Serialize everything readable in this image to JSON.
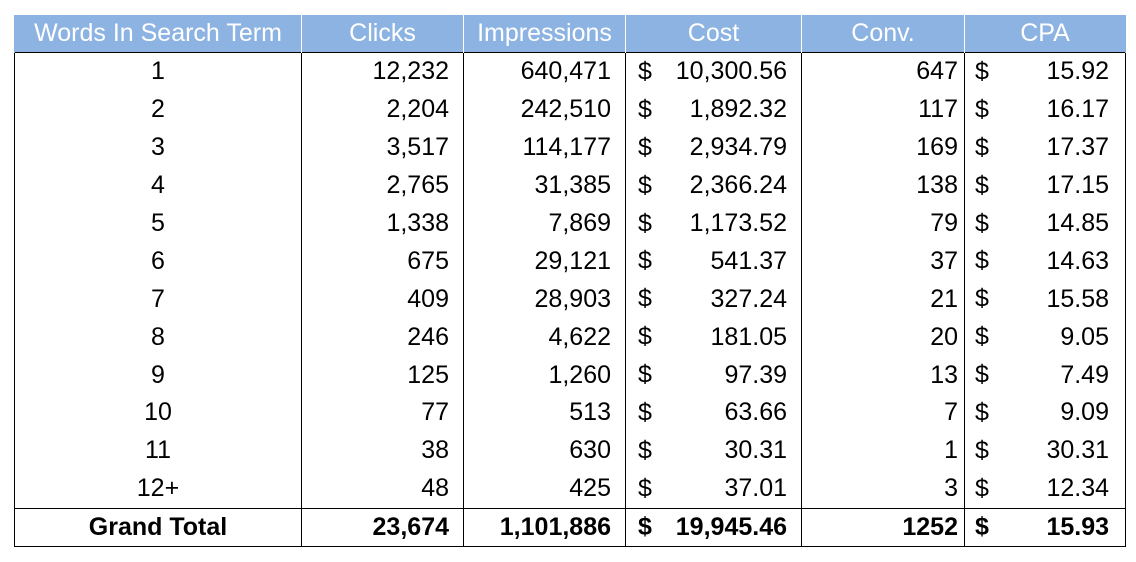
{
  "table": {
    "headers": {
      "words": "Words In Search Term",
      "clicks": "Clicks",
      "impressions": "Impressions",
      "cost": "Cost",
      "conv": "Conv.",
      "cpa": "CPA"
    },
    "currency_symbol": "$",
    "rows": [
      {
        "words": "1",
        "clicks": "12,232",
        "impressions": "640,471",
        "cost": "10,300.56",
        "conv": "647",
        "cpa": "15.92"
      },
      {
        "words": "2",
        "clicks": "2,204",
        "impressions": "242,510",
        "cost": "1,892.32",
        "conv": "117",
        "cpa": "16.17"
      },
      {
        "words": "3",
        "clicks": "3,517",
        "impressions": "114,177",
        "cost": "2,934.79",
        "conv": "169",
        "cpa": "17.37"
      },
      {
        "words": "4",
        "clicks": "2,765",
        "impressions": "31,385",
        "cost": "2,366.24",
        "conv": "138",
        "cpa": "17.15"
      },
      {
        "words": "5",
        "clicks": "1,338",
        "impressions": "7,869",
        "cost": "1,173.52",
        "conv": "79",
        "cpa": "14.85"
      },
      {
        "words": "6",
        "clicks": "675",
        "impressions": "29,121",
        "cost": "541.37",
        "conv": "37",
        "cpa": "14.63"
      },
      {
        "words": "7",
        "clicks": "409",
        "impressions": "28,903",
        "cost": "327.24",
        "conv": "21",
        "cpa": "15.58"
      },
      {
        "words": "8",
        "clicks": "246",
        "impressions": "4,622",
        "cost": "181.05",
        "conv": "20",
        "cpa": "9.05"
      },
      {
        "words": "9",
        "clicks": "125",
        "impressions": "1,260",
        "cost": "97.39",
        "conv": "13",
        "cpa": "7.49"
      },
      {
        "words": "10",
        "clicks": "77",
        "impressions": "513",
        "cost": "63.66",
        "conv": "7",
        "cpa": "9.09"
      },
      {
        "words": "11",
        "clicks": "38",
        "impressions": "630",
        "cost": "30.31",
        "conv": "1",
        "cpa": "30.31"
      },
      {
        "words": "12+",
        "clicks": "48",
        "impressions": "425",
        "cost": "37.01",
        "conv": "3",
        "cpa": "12.34"
      }
    ],
    "total": {
      "label": "Grand Total",
      "clicks": "23,674",
      "impressions": "1,101,886",
      "cost": "19,945.46",
      "conv": "1252",
      "cpa": "15.93"
    }
  },
  "colors": {
    "header_bg": "#8db3e2",
    "header_text": "#ffffff",
    "grid": "#000000"
  }
}
